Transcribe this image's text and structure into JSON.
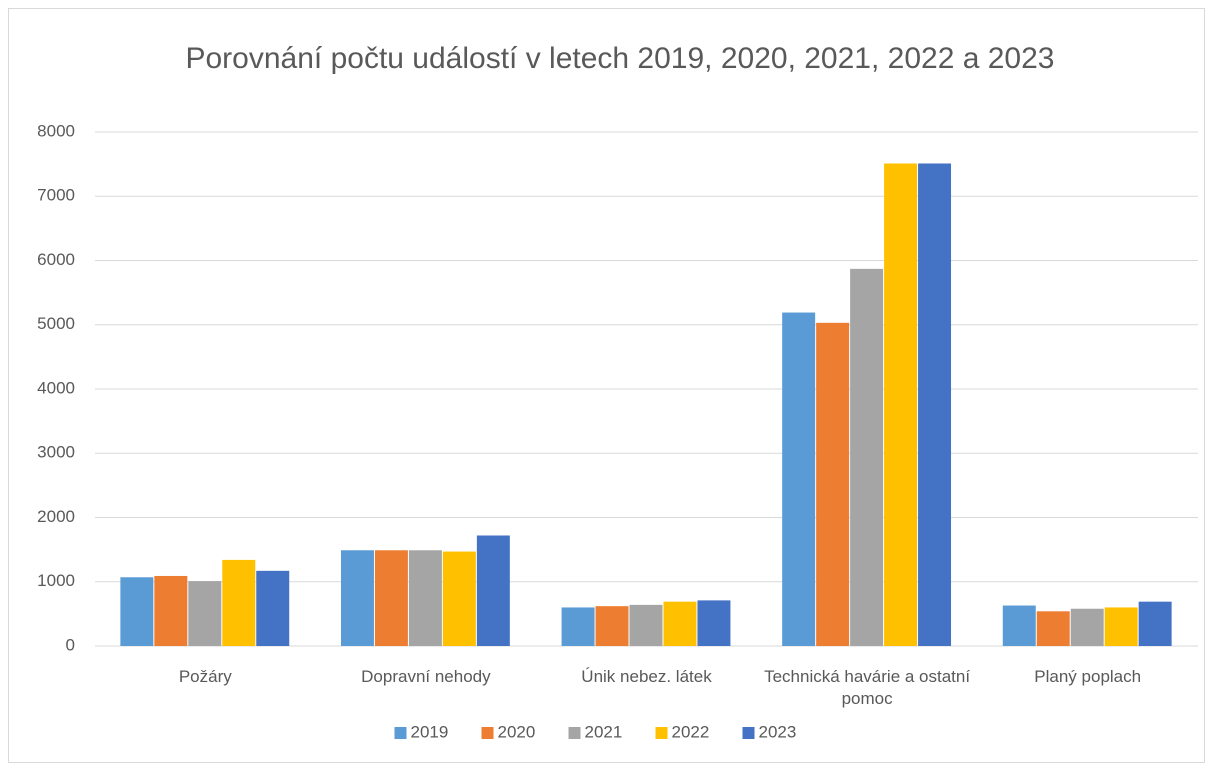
{
  "chart_data": {
    "type": "bar",
    "title": "Porovnání počtu událostí v letech 2019, 2020, 2021, 2022 a 2023",
    "categories": [
      "Požáry",
      "Dopravní nehody",
      "Únik nebez. látek",
      "Technická havárie a ostatní pomoc",
      "Planý poplach"
    ],
    "series": [
      {
        "name": "2019",
        "color": "#5b9bd5",
        "values": [
          1070,
          1490,
          600,
          5190,
          630
        ]
      },
      {
        "name": "2020",
        "color": "#ed7d31",
        "values": [
          1090,
          1490,
          620,
          5030,
          540
        ]
      },
      {
        "name": "2021",
        "color": "#a5a5a5",
        "values": [
          1010,
          1490,
          640,
          5870,
          580
        ]
      },
      {
        "name": "2022",
        "color": "#ffc000",
        "values": [
          1340,
          1470,
          690,
          7510,
          600
        ]
      },
      {
        "name": "2023",
        "color": "#4472c4",
        "values": [
          1170,
          1720,
          710,
          7510,
          690
        ]
      }
    ],
    "ylim": [
      0,
      8000
    ],
    "yticks": [
      0,
      1000,
      2000,
      3000,
      4000,
      5000,
      6000,
      7000,
      8000
    ],
    "grid": true,
    "legend": "bottom"
  }
}
